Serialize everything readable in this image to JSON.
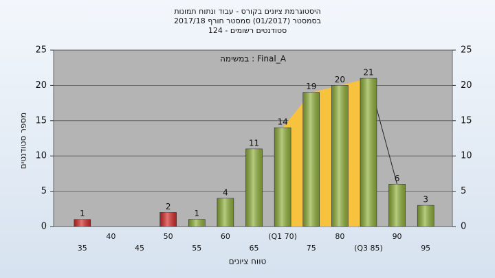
{
  "chart_data": {
    "type": "bar",
    "title": "היסטוגרמת ציונים בקורס - עבוד ונתוח תמונות",
    "subtitle": "בסמסטר  (01/2017)  סמסטר חורף 2017/18",
    "subtitle2": "סטודנטים רשומים - 124",
    "annotation": "במשימה : Final_A",
    "xlabel": "טווח ציונים",
    "ylabel": "מספר סטודנטים",
    "categories": [
      "35",
      "40",
      "45",
      "50",
      "55",
      "60",
      "65",
      "(Q1 70)",
      "75",
      "80",
      "(Q3 85)",
      "90",
      "95"
    ],
    "values": [
      1,
      0,
      0,
      2,
      1,
      4,
      11,
      14,
      19,
      20,
      21,
      6,
      3
    ],
    "colors": [
      "#d42a2a",
      "#8fb03a",
      "#8fb03a",
      "#d42a2a",
      "#8fb03a",
      "#8fb03a",
      "#8fb03a",
      "#8fb03a",
      "#8fb03a",
      "#8fb03a",
      "#8fb03a",
      "#8fb03a",
      "#8fb03a"
    ],
    "highlight_color": "#f7c23e",
    "ylim": [
      0,
      25
    ],
    "yticks": [
      0,
      5,
      10,
      15,
      20,
      25
    ],
    "y2lim": [
      0,
      25
    ],
    "y2ticks": [
      0,
      5,
      10,
      15,
      20,
      25
    ],
    "grid": true
  }
}
